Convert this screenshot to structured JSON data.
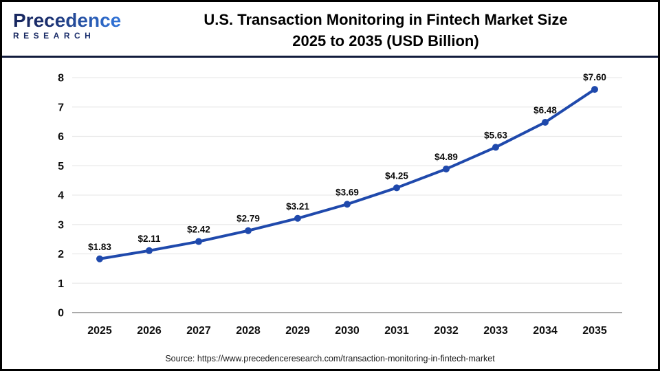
{
  "header": {
    "logo": {
      "name": "Precedence",
      "sub": "RESEARCH"
    },
    "title_line1": "U.S. Transaction Monitoring in Fintech Market Size",
    "title_line2": "2025 to 2035 (USD Billion)"
  },
  "colors": {
    "line": "#1f49ac",
    "marker": "#1f49ac",
    "grid": "#e9e9e9",
    "axis": "#aaaaaa",
    "divider": "#111b3c",
    "logo_navy": "#1b2f6e",
    "logo_blue": "#2f6fd2"
  },
  "chart_data": {
    "type": "line",
    "title": "U.S. Transaction Monitoring in Fintech Market Size 2025 to 2035 (USD Billion)",
    "categories": [
      "2025",
      "2026",
      "2027",
      "2028",
      "2029",
      "2030",
      "2031",
      "2032",
      "2033",
      "2034",
      "2035"
    ],
    "values": [
      1.83,
      2.11,
      2.42,
      2.79,
      3.21,
      3.69,
      4.25,
      4.89,
      5.63,
      6.48,
      7.6
    ],
    "point_labels": [
      "$1.83",
      "$2.11",
      "$2.42",
      "$2.79",
      "$3.21",
      "$3.69",
      "$4.25",
      "$4.89",
      "$5.63",
      "$6.48",
      "$7.60"
    ],
    "xlabel": "",
    "ylabel": "",
    "ylim": [
      0,
      8
    ],
    "ytick_step": 1,
    "grid": true,
    "legend": "none"
  },
  "source": "Source: https://www.precedenceresearch.com/transaction-monitoring-in-fintech-market"
}
